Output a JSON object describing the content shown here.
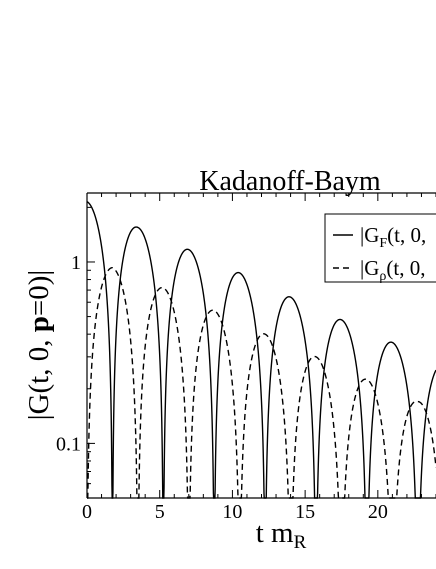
{
  "chart_data": {
    "type": "line",
    "title": "Kadanoff-Baym",
    "xlabel": "t m",
    "xlabel_sub": "R",
    "ylabel": {
      "prefix": "|G(t, 0, ",
      "bold": "p",
      "suffix": "=0)|"
    },
    "x_axis": {
      "range": [
        0,
        24
      ],
      "ticks": [
        "0",
        "5",
        "10",
        "15",
        "20"
      ],
      "tick_values": [
        0,
        5,
        10,
        15,
        20
      ]
    },
    "y_axis": {
      "scale": "log",
      "range": [
        0.05,
        2.4
      ],
      "ticks": [
        "0.1",
        "1"
      ],
      "tick_values": [
        0.1,
        1
      ]
    },
    "grid": false,
    "legend_position": "top-right",
    "series": [
      {
        "name": "|G_F(t, 0,",
        "legend_main": "|G",
        "legend_sub": "F",
        "legend_rest": "(t, 0,",
        "style": "solid",
        "peaks": [
          {
            "t": 0.0,
            "value": 2.15
          },
          {
            "t": 3.5,
            "value": 1.55
          },
          {
            "t": 7.0,
            "value": 1.17
          },
          {
            "t": 10.5,
            "value": 0.87
          },
          {
            "t": 14.0,
            "value": 0.64
          },
          {
            "t": 17.5,
            "value": 0.48
          },
          {
            "t": 21.0,
            "value": 0.36
          },
          {
            "t": 24.5,
            "value": 0.27
          }
        ],
        "zeros": [
          1.75,
          5.25,
          8.75,
          12.25,
          15.75,
          19.25,
          22.75
        ]
      },
      {
        "name": "|G_ρ(t, 0,",
        "legend_main": "|G",
        "legend_sub": "ρ",
        "legend_rest": "(t, 0,",
        "style": "dashed",
        "peaks": [
          {
            "t": 1.75,
            "value": 0.93
          },
          {
            "t": 5.25,
            "value": 0.72
          },
          {
            "t": 8.75,
            "value": 0.54
          },
          {
            "t": 12.25,
            "value": 0.4
          },
          {
            "t": 15.75,
            "value": 0.3
          },
          {
            "t": 19.25,
            "value": 0.225
          },
          {
            "t": 22.75,
            "value": 0.17
          }
        ],
        "zeros": [
          0.0,
          3.5,
          7.0,
          10.5,
          14.0,
          17.5,
          21.0,
          24.5
        ]
      }
    ]
  }
}
